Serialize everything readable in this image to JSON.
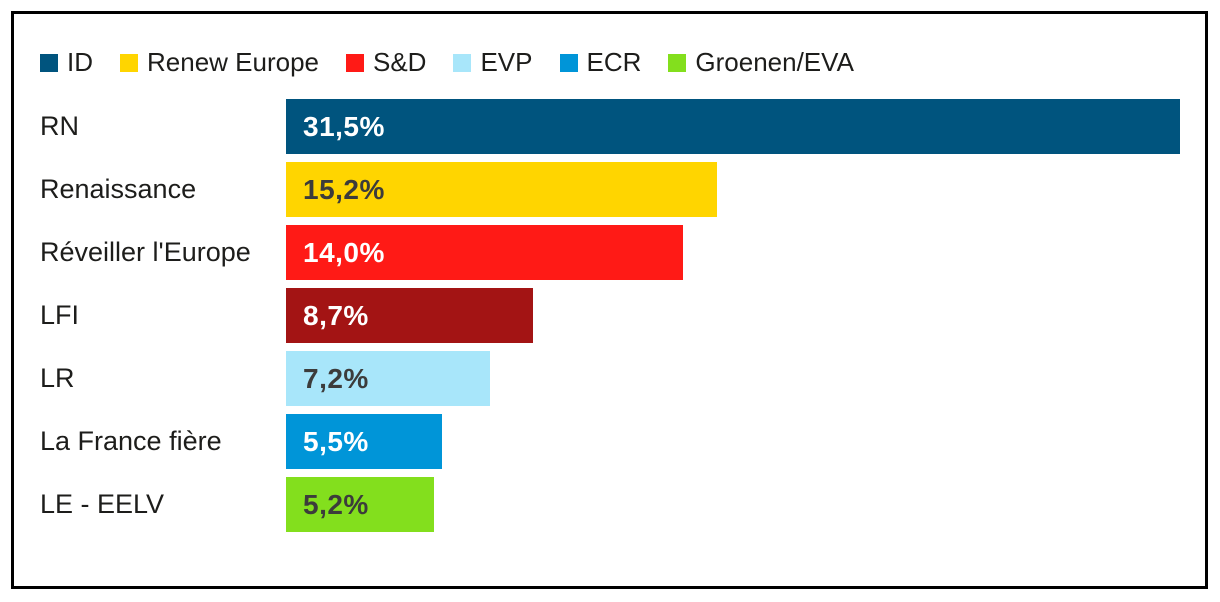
{
  "legend": {
    "items": [
      {
        "label": "ID",
        "color": "#00547e"
      },
      {
        "label": "Renew Europe",
        "color": "#ffd500"
      },
      {
        "label": "S&D",
        "color": "#ff1a16"
      },
      {
        "label": "EVP",
        "color": "#a8e6fa"
      },
      {
        "label": "ECR",
        "color": "#0095d8"
      },
      {
        "label": "Groenen/EVA",
        "color": "#83df1d"
      }
    ]
  },
  "chart_data": {
    "type": "bar",
    "orientation": "horizontal",
    "categories": [
      "RN",
      "Renaissance",
      "Réveiller l'Europe",
      "LFI",
      "LR",
      "La France fière",
      "LE - EELV"
    ],
    "values": [
      31.5,
      15.2,
      14.0,
      8.7,
      7.2,
      5.5,
      5.2
    ],
    "value_labels": [
      "31,5%",
      "15,2%",
      "14,0%",
      "8,7%",
      "7,2%",
      "5,5%",
      "5,2%"
    ],
    "bar_colors": [
      "#00547e",
      "#ffd500",
      "#ff1a16",
      "#a31414",
      "#a8e6fa",
      "#0095d8",
      "#83df1d"
    ],
    "value_text_colors": [
      "#ffffff",
      "#3c3c3b",
      "#ffffff",
      "#ffffff",
      "#3c3c3b",
      "#ffffff",
      "#3c3c3b"
    ],
    "title": "",
    "xlabel": "",
    "ylabel": "",
    "xlim": [
      0,
      31.5
    ],
    "grid": false,
    "legend_position": "top-left"
  },
  "colors": {
    "frame_border": "#000000",
    "background": "#ffffff",
    "label_text": "#1d1d1b"
  }
}
